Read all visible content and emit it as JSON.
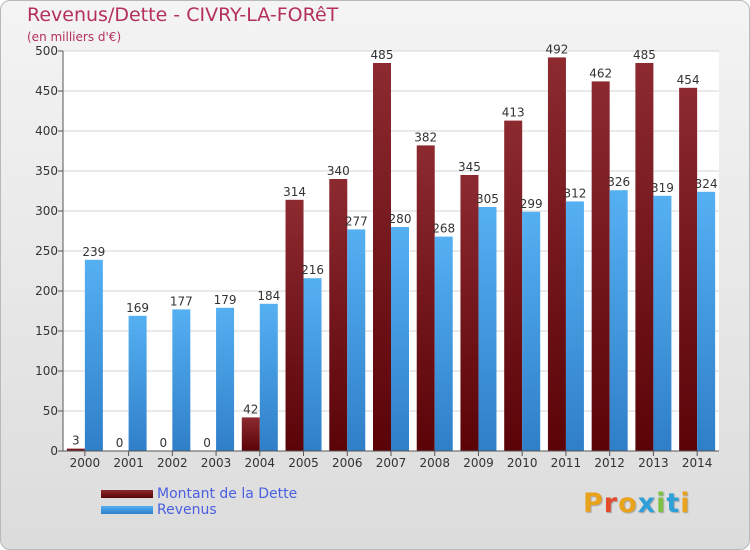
{
  "title": "Revenus/Dette - CIVRY-LA-FORêT",
  "subtitle": "(en milliers d'€)",
  "logo_text": "Proxiti",
  "colors": {
    "dette": "#6b0d12",
    "revenus": "#3d9de8",
    "title": "#b5305a",
    "legend_text": "#4a5fe0"
  },
  "chart_data": {
    "type": "bar",
    "title": "Revenus/Dette - CIVRY-LA-FORêT",
    "ylabel": "(en milliers d'€)",
    "xlabel": "",
    "categories": [
      "2000",
      "2001",
      "2002",
      "2003",
      "2004",
      "2005",
      "2006",
      "2007",
      "2008",
      "2009",
      "2010",
      "2011",
      "2012",
      "2013",
      "2014"
    ],
    "series": [
      {
        "name": "Montant de la Dette",
        "values": [
          3,
          0,
          0,
          0,
          42,
          314,
          340,
          485,
          382,
          345,
          413,
          492,
          462,
          485,
          454
        ]
      },
      {
        "name": "Revenus",
        "values": [
          239,
          169,
          177,
          179,
          184,
          216,
          277,
          280,
          268,
          305,
          299,
          312,
          326,
          319,
          324
        ]
      }
    ],
    "ylim": [
      0,
      500
    ],
    "yticks": [
      0,
      50,
      100,
      150,
      200,
      250,
      300,
      350,
      400,
      450,
      500
    ],
    "grid": true,
    "legend_position": "bottom-left"
  }
}
